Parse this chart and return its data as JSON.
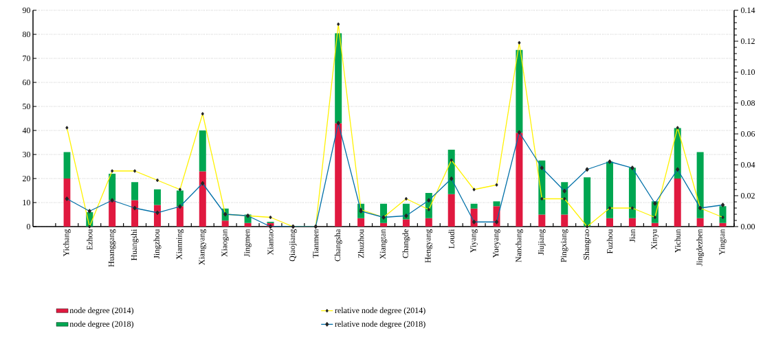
{
  "chart_data": {
    "type": "bar",
    "stacked": true,
    "categories": [
      "Yichang",
      "Ezhou",
      "Huanggang",
      "Huangshi",
      "Jingzhou",
      "Xianning",
      "Xiangyang",
      "Xiaogan",
      "Jingmen",
      "Xiantao",
      "Qiaojiang",
      "Tianmen",
      "Changsha",
      "Zhuzhou",
      "Xiangtan",
      "Changde",
      "Hengyang",
      "Loudi",
      "Yiyang",
      "Yueyang",
      "Nanchang",
      "Jiujiang",
      "Pingxiang",
      "Shangrao",
      "Fuzhou",
      "Jian",
      "Xinyu",
      "Yichun",
      "Jingdezhen",
      "Yingtan"
    ],
    "series": [
      {
        "name": "node degree (2014)",
        "color": "#e0193f",
        "values": [
          20,
          0,
          11,
          11,
          9,
          8.5,
          23,
          2.5,
          1.5,
          1.5,
          0,
          0,
          43,
          3.5,
          1.5,
          3,
          3.5,
          13.5,
          7.5,
          8.5,
          39,
          5,
          5,
          0,
          3.5,
          3.5,
          1.5,
          20,
          3.5,
          1.5
        ]
      },
      {
        "name": "node degree (2018)",
        "color": "#00a651",
        "values": [
          11,
          6,
          11,
          7.5,
          6.5,
          6.5,
          17,
          5,
          3.5,
          0.5,
          0,
          0,
          37.5,
          6,
          8,
          6.5,
          10.5,
          18.5,
          2,
          2,
          34.5,
          22.5,
          13.5,
          20.5,
          23.5,
          21,
          9,
          21,
          27.5,
          7
        ]
      },
      {
        "name": "relative node degree (2014)",
        "type": "line",
        "axis": "y2",
        "color": "#fff200",
        "marker": "diamond",
        "values": [
          0.064,
          0,
          0.036,
          0.036,
          0.03,
          0.024,
          0.073,
          0.008,
          0.007,
          0.006,
          0,
          0,
          0.131,
          0.011,
          0.006,
          0.018,
          0.011,
          0.043,
          0.024,
          0.027,
          0.119,
          0.018,
          0.018,
          0,
          0.012,
          0.012,
          0.006,
          0.064,
          0.012,
          0.006
        ]
      },
      {
        "name": "relative node degree (2018)",
        "type": "line",
        "axis": "y2",
        "color": "#0070a8",
        "marker": "diamond",
        "values": [
          0.018,
          0.01,
          0.017,
          0.012,
          0.009,
          0.013,
          0.028,
          0.008,
          0.007,
          0,
          0,
          0,
          0.067,
          0.01,
          0.006,
          0.007,
          0.017,
          0.031,
          0.003,
          0.003,
          0.061,
          0.038,
          0.023,
          0.037,
          0.042,
          0.038,
          0.015,
          0.037,
          0.012,
          0.014
        ]
      }
    ],
    "ylim": [
      0,
      90
    ],
    "yticks": [
      0,
      10,
      20,
      30,
      40,
      50,
      60,
      70,
      80,
      90
    ],
    "y2lim": [
      0,
      0.14
    ],
    "y2ticks": [
      {
        "value": 0,
        "label": "0.00"
      },
      {
        "value": 0.02,
        "label": "0.02"
      },
      {
        "value": 0.04,
        "label": "0.04"
      },
      {
        "value": 0.06,
        "label": "0.06"
      },
      {
        "value": 0.08,
        "label": "0.08"
      },
      {
        "value": 0.1,
        "label": "0.10"
      },
      {
        "value": 0.12,
        "label": "0.12"
      },
      {
        "value": 0.14,
        "label": "0.14"
      }
    ],
    "grid": "y",
    "legend": "bottom"
  }
}
